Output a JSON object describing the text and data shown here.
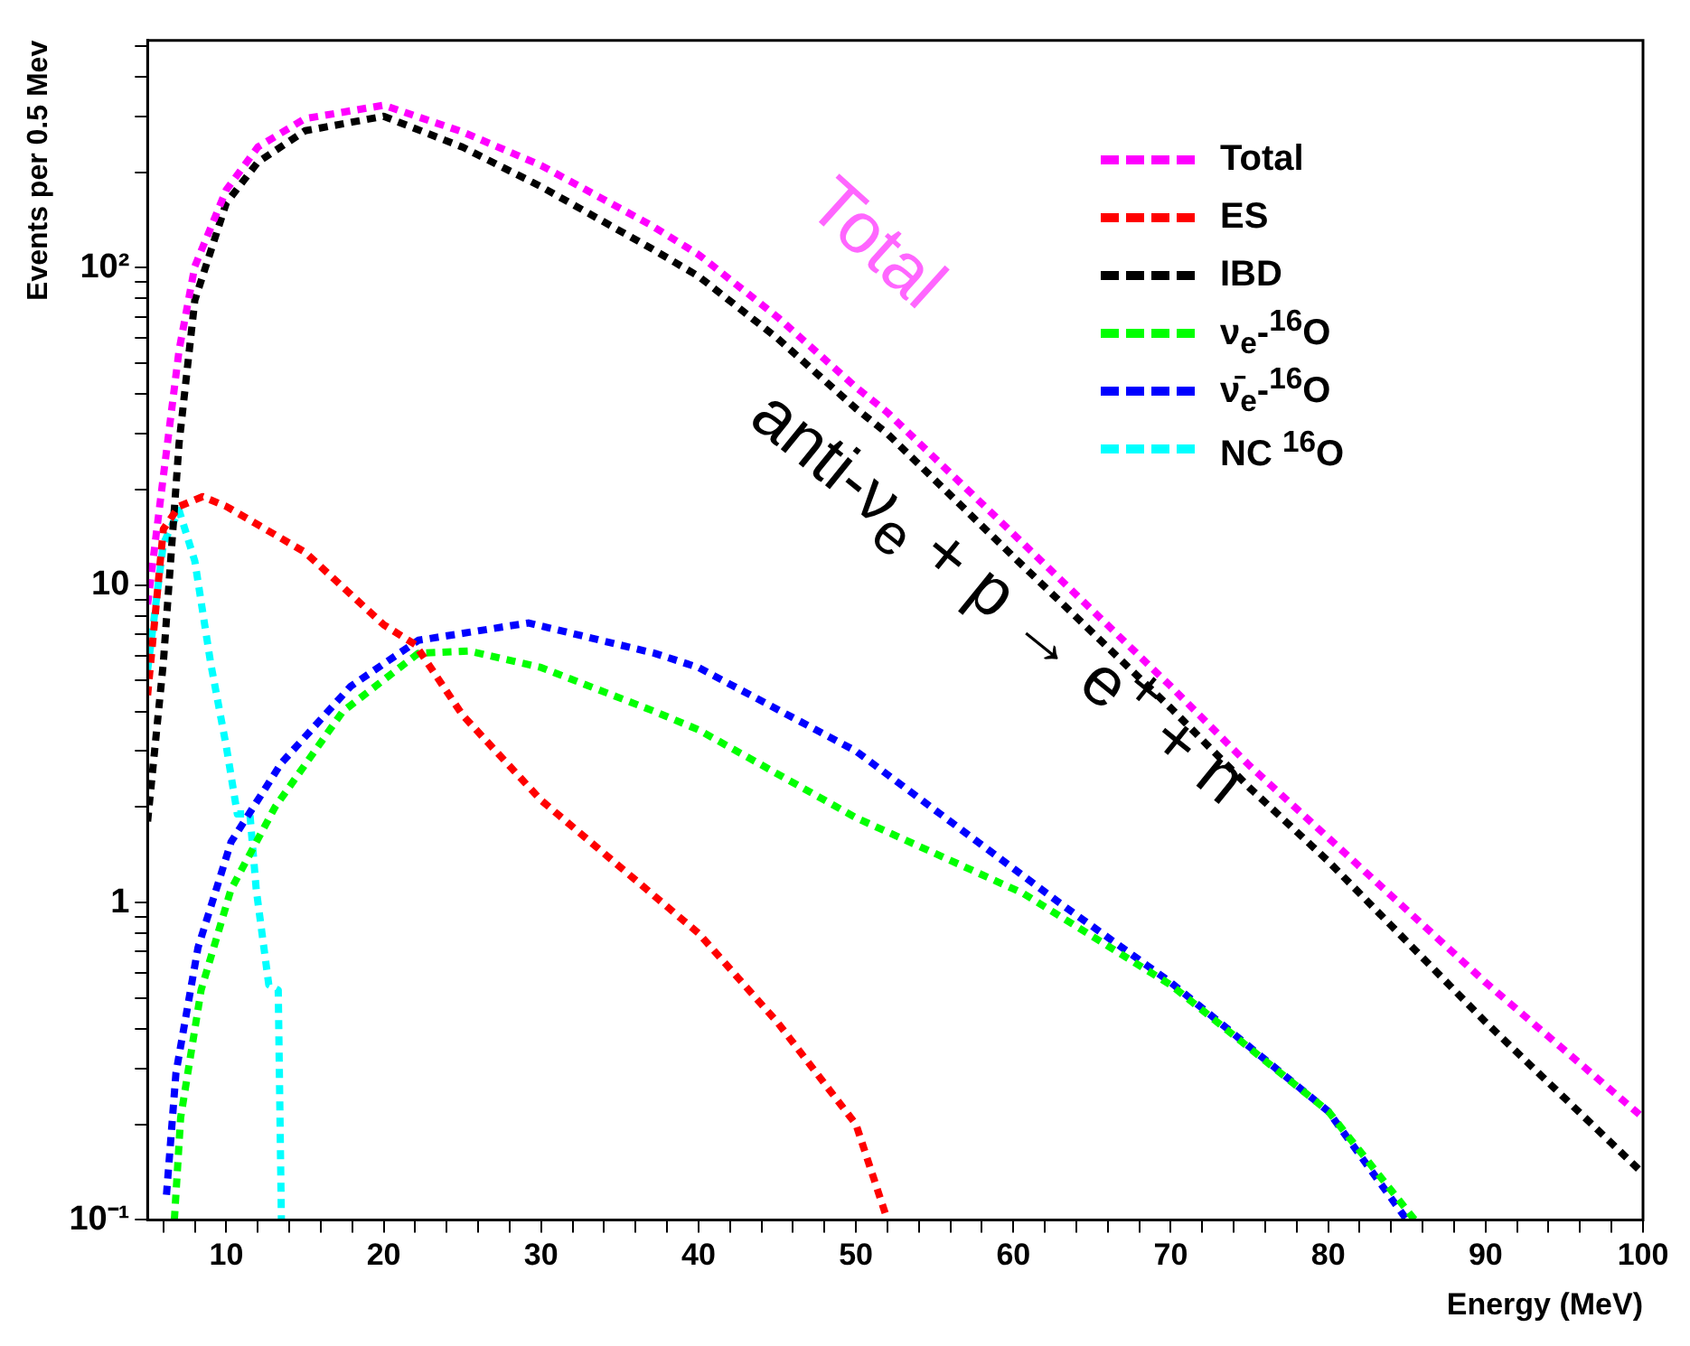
{
  "chart_data": {
    "type": "line",
    "xlabel": "Energy (MeV)",
    "ylabel": "Events per 0.5 Mev",
    "log": "y",
    "grid": false,
    "legend": "top right",
    "marker": "none",
    "line_style": "dotted",
    "xlim": [
      5,
      100
    ],
    "ylim": [
      0.1,
      520
    ],
    "xticks": [
      {
        "value": 6,
        "label": null
      },
      {
        "value": 8,
        "label": null
      },
      10,
      {
        "value": 12,
        "label": null
      },
      {
        "value": 14,
        "label": null
      },
      {
        "value": 16,
        "label": null
      },
      {
        "value": 18,
        "label": null
      },
      20,
      {
        "value": 22,
        "label": null
      },
      {
        "value": 24,
        "label": null
      },
      {
        "value": 26,
        "label": null
      },
      {
        "value": 28,
        "label": null
      },
      30,
      {
        "value": 32,
        "label": null
      },
      {
        "value": 34,
        "label": null
      },
      {
        "value": 36,
        "label": null
      },
      {
        "value": 38,
        "label": null
      },
      40,
      {
        "value": 42,
        "label": null
      },
      {
        "value": 44,
        "label": null
      },
      {
        "value": 46,
        "label": null
      },
      {
        "value": 48,
        "label": null
      },
      50,
      {
        "value": 52,
        "label": null
      },
      {
        "value": 54,
        "label": null
      },
      {
        "value": 56,
        "label": null
      },
      {
        "value": 58,
        "label": null
      },
      60,
      {
        "value": 62,
        "label": null
      },
      {
        "value": 64,
        "label": null
      },
      {
        "value": 66,
        "label": null
      },
      {
        "value": 68,
        "label": null
      },
      70,
      {
        "value": 72,
        "label": null
      },
      {
        "value": 74,
        "label": null
      },
      {
        "value": 76,
        "label": null
      },
      {
        "value": 78,
        "label": null
      },
      80,
      {
        "value": 82,
        "label": null
      },
      {
        "value": 84,
        "label": null
      },
      {
        "value": 86,
        "label": null
      },
      {
        "value": 88,
        "label": null
      },
      90,
      {
        "value": 92,
        "label": null
      },
      {
        "value": 94,
        "label": null
      },
      {
        "value": 96,
        "label": null
      },
      {
        "value": 98,
        "label": null
      },
      100
    ],
    "yticks": [
      {
        "value": 0.1,
        "label": "10⁻¹"
      },
      {
        "value": 0.2,
        "label": null
      },
      {
        "value": 0.3,
        "label": null
      },
      {
        "value": 0.4,
        "label": null
      },
      {
        "value": 0.5,
        "label": null
      },
      {
        "value": 0.6,
        "label": null
      },
      {
        "value": 0.7,
        "label": null
      },
      {
        "value": 0.8,
        "label": null
      },
      {
        "value": 0.9,
        "label": null
      },
      1,
      {
        "value": 2,
        "label": null
      },
      {
        "value": 3,
        "label": null
      },
      {
        "value": 4,
        "label": null
      },
      {
        "value": 5,
        "label": null
      },
      {
        "value": 6,
        "label": null
      },
      {
        "value": 7,
        "label": null
      },
      {
        "value": 8,
        "label": null
      },
      {
        "value": 9,
        "label": null
      },
      10,
      {
        "value": 20,
        "label": null
      },
      {
        "value": 30,
        "label": null
      },
      {
        "value": 40,
        "label": null
      },
      {
        "value": 50,
        "label": null
      },
      {
        "value": 60,
        "label": null
      },
      {
        "value": 70,
        "label": null
      },
      {
        "value": 80,
        "label": null
      },
      {
        "value": 90,
        "label": null
      },
      {
        "value": 100,
        "label": "10²"
      },
      {
        "value": 200,
        "label": null
      },
      {
        "value": 300,
        "label": null
      },
      {
        "value": 400,
        "label": null
      },
      {
        "value": 500,
        "label": null
      }
    ],
    "series": [
      {
        "name": "Total",
        "color": "#ff00ff",
        "x": [
          5,
          6,
          7,
          8,
          10,
          12,
          15,
          20,
          25,
          30,
          37,
          40,
          45,
          50,
          52,
          60,
          70,
          75,
          80,
          90,
          100
        ],
        "values": [
          8.7,
          22,
          55,
          101,
          176,
          240,
          295,
          325,
          268,
          210,
          136,
          110,
          70,
          42,
          35,
          14.5,
          4.8,
          2.7,
          1.6,
          0.56,
          0.21
        ]
      },
      {
        "name": "ES",
        "color": "#ff0000",
        "x": [
          5,
          6,
          7,
          8.5,
          10,
          15,
          20,
          22,
          25,
          30,
          40,
          45,
          50,
          52
        ],
        "values": [
          4.5,
          15,
          17.7,
          19,
          17.7,
          12.7,
          7.5,
          6.5,
          3.9,
          2.1,
          0.8,
          0.42,
          0.2,
          0.1
        ]
      },
      {
        "name": "IBD",
        "color": "#000000",
        "x": [
          5,
          6,
          7,
          8,
          10,
          12,
          15,
          20,
          25,
          30,
          37,
          40,
          45,
          50,
          52,
          60,
          70,
          75,
          80,
          90,
          100
        ],
        "values": [
          1.8,
          5.7,
          28,
          79,
          160,
          215,
          270,
          300,
          240,
          180,
          115,
          94,
          60,
          36,
          30,
          12.3,
          4.1,
          2.3,
          1.35,
          0.42,
          0.14
        ]
      },
      {
        "name": "ν$_{e}$-$^{16}$O",
        "color": "#00ff00",
        "x": [
          6.7,
          7.1,
          8.4,
          10.3,
          13.1,
          17.4,
          22.2,
          25.4,
          30,
          37.2,
          40,
          50,
          60.6,
          70,
          80,
          85.5
        ],
        "values": [
          0.1,
          0.21,
          0.53,
          1.1,
          2,
          4,
          6.1,
          6.2,
          5.5,
          4,
          3.5,
          1.85,
          1.07,
          0.55,
          0.22,
          0.1
        ]
      },
      {
        "name": "ν̄$_{e}$-$^{16}$O",
        "color": "#0000ff",
        "x": [
          6.2,
          6.8,
          8.2,
          10.3,
          13.5,
          17.9,
          22.2,
          29.2,
          37.2,
          40,
          50,
          62.9,
          70,
          80,
          85
        ],
        "values": [
          0.12,
          0.29,
          0.72,
          1.55,
          2.75,
          4.8,
          6.7,
          7.6,
          6.1,
          5.5,
          3,
          1,
          0.56,
          0.22,
          0.1
        ]
      },
      {
        "name": "NC $^{16}$O",
        "color": "#00ffff",
        "x": [
          5,
          6,
          7,
          8,
          9,
          10,
          10.7,
          11.5,
          11.9,
          12.7,
          13.3,
          13.5
        ],
        "values": [
          5.4,
          13.5,
          17.2,
          11.9,
          5.7,
          3.1,
          1.9,
          1.9,
          1.1,
          0.55,
          0.53,
          0.1
        ]
      }
    ],
    "annotations": [
      "Total",
      "anti-ν$_{e}$ + p → e$^{+}$ + n"
    ]
  }
}
